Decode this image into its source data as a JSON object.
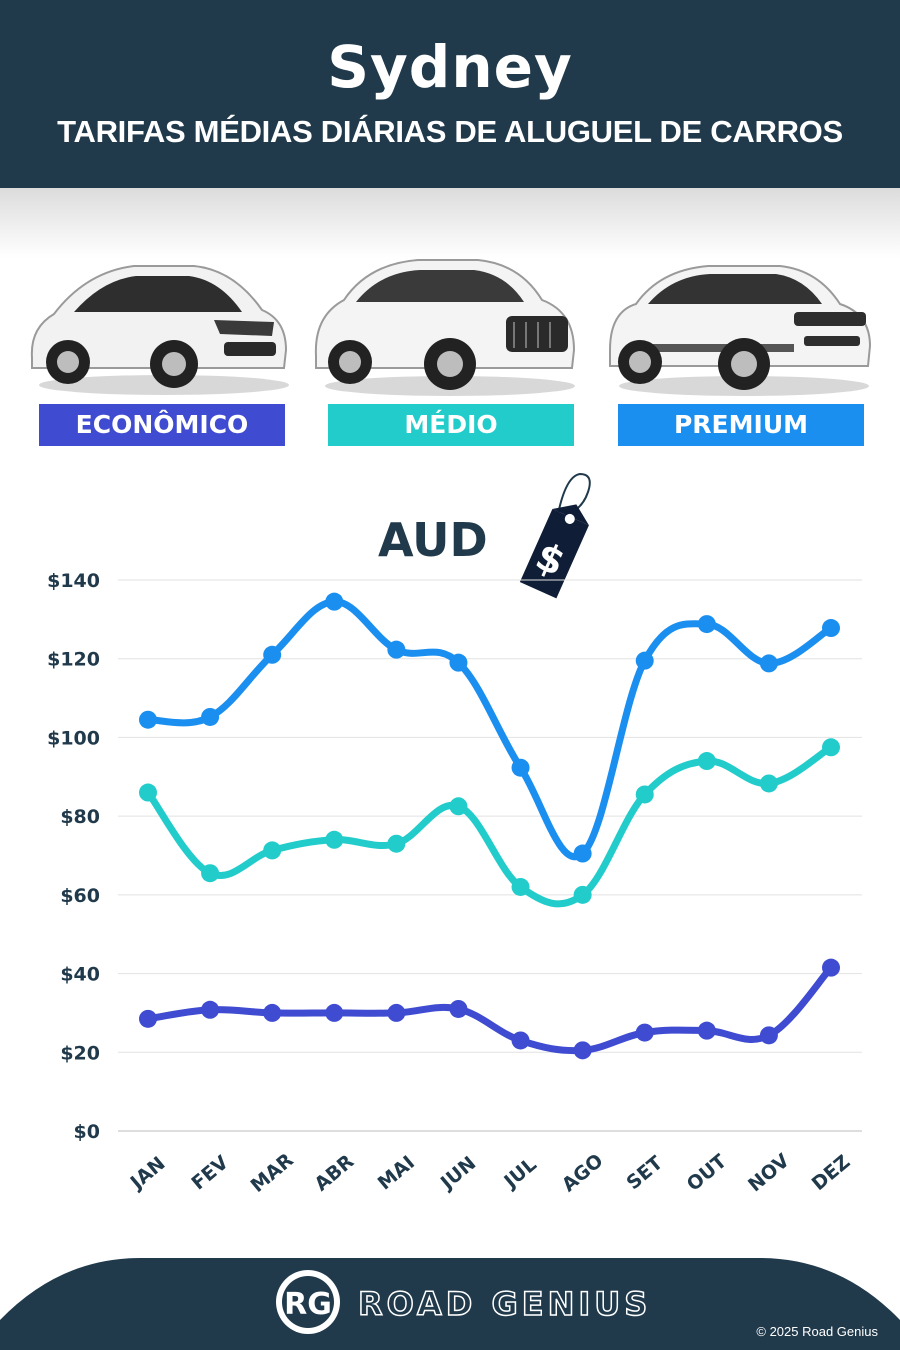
{
  "header": {
    "title": "Sydney",
    "subtitle": "TARIFAS MÉDIAS DIÁRIAS DE ALUGUEL DE CARROS"
  },
  "categories_legend": [
    {
      "label": "ECONÔMICO",
      "color": "#3f4bd0"
    },
    {
      "label": "MÉDIO",
      "color": "#22cccb"
    },
    {
      "label": "PREMIUM",
      "color": "#1b8ff0"
    }
  ],
  "currency": {
    "label": "AUD",
    "tag_symbol": "$",
    "icon": "price-tag-icon"
  },
  "chart_data": {
    "type": "line",
    "x": [
      "JAN",
      "FEV",
      "MAR",
      "ABR",
      "MAI",
      "JUN",
      "JUL",
      "AGO",
      "SET",
      "OUT",
      "NOV",
      "DEZ"
    ],
    "series": [
      {
        "name": "ECONÔMICO",
        "color": "#3f4bd0",
        "values": [
          28.5,
          30.8,
          30,
          30,
          30,
          31,
          23,
          20.5,
          25,
          25.5,
          24.3,
          41.5
        ]
      },
      {
        "name": "MÉDIO",
        "color": "#22cccb",
        "values": [
          86,
          65.5,
          71.3,
          74,
          73,
          82.5,
          62,
          60,
          85.5,
          94,
          88.3,
          97.5
        ]
      },
      {
        "name": "PREMIUM",
        "color": "#1b8ff0",
        "values": [
          104.5,
          105.2,
          121,
          134.5,
          122.3,
          119,
          92.3,
          70.5,
          119.5,
          128.8,
          118.8,
          127.8
        ]
      }
    ],
    "ylim": [
      0,
      140
    ],
    "yticks": [
      0,
      20,
      40,
      60,
      80,
      100,
      120,
      140
    ],
    "ytick_labels": [
      "$0",
      "$20",
      "$40",
      "$60",
      "$80",
      "$100",
      "$120",
      "$140"
    ],
    "grid": true,
    "xlabel": "",
    "ylabel": ""
  },
  "footer": {
    "logo_text": "RG",
    "brand": "ROAD GENIUS",
    "copyright": "© 2025 Road Genius"
  }
}
